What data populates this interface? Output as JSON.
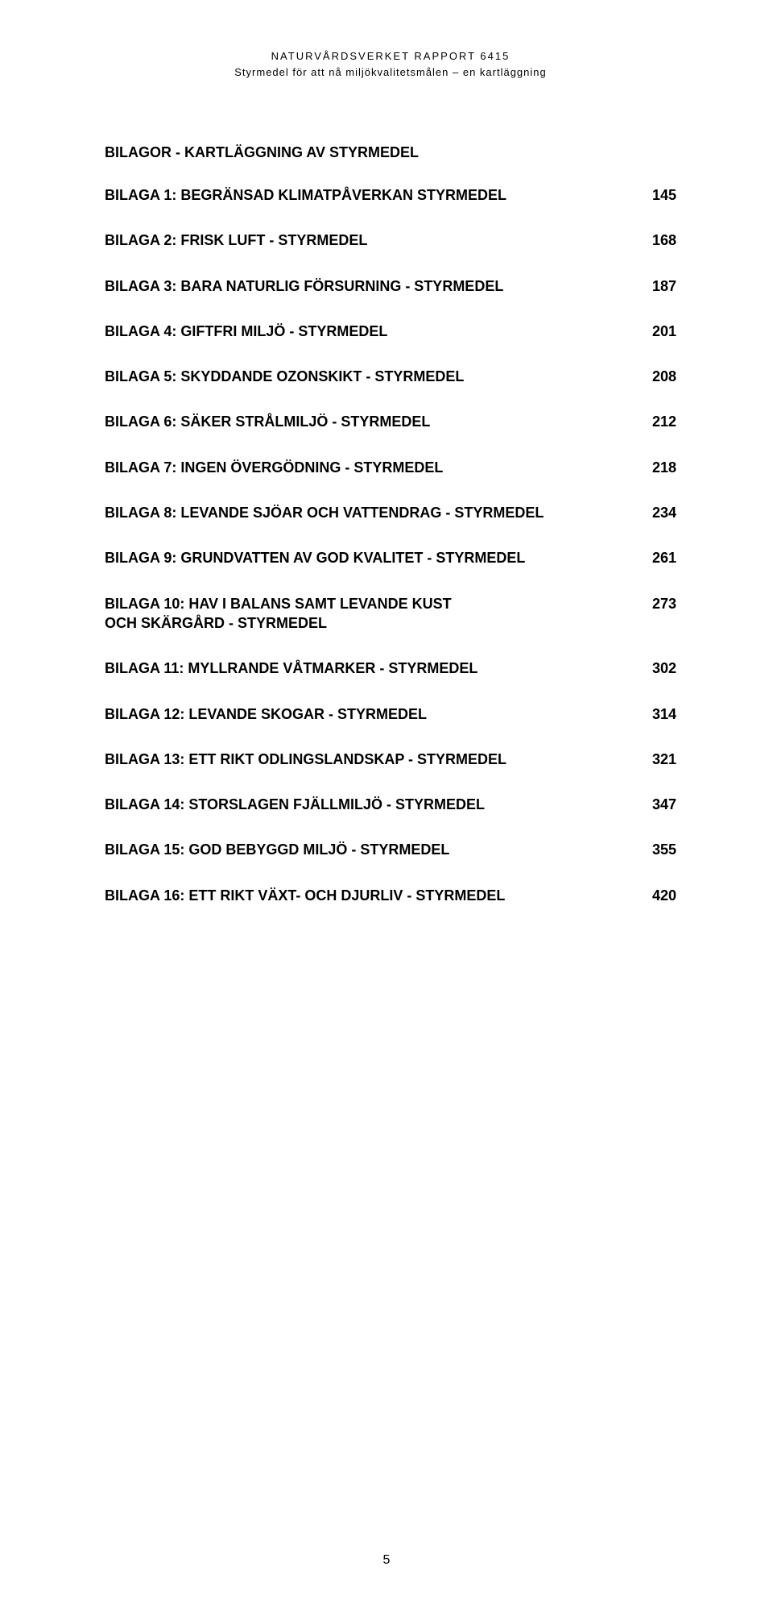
{
  "header": {
    "line1": "NATURVÅRDSVERKET RAPPORT 6415",
    "line2": "Styrmedel för att nå miljökvalitetsmålen – en kartläggning"
  },
  "section_title": "BILAGOR - KARTLÄGGNING AV STYRMEDEL",
  "toc": [
    {
      "label": "BILAGA 1: BEGRÄNSAD KLIMATPÅVERKAN STYRMEDEL",
      "page": "145"
    },
    {
      "label": "BILAGA 2: FRISK LUFT - STYRMEDEL",
      "page": "168"
    },
    {
      "label": "BILAGA 3: BARA NATURLIG FÖRSURNING - STYRMEDEL",
      "page": "187"
    },
    {
      "label": "BILAGA 4: GIFTFRI MILJÖ - STYRMEDEL",
      "page": "201"
    },
    {
      "label": "BILAGA 5: SKYDDANDE OZONSKIKT - STYRMEDEL",
      "page": "208"
    },
    {
      "label": "BILAGA 6: SÄKER STRÅLMILJÖ - STYRMEDEL",
      "page": "212"
    },
    {
      "label": "BILAGA 7: INGEN ÖVERGÖDNING - STYRMEDEL",
      "page": "218"
    },
    {
      "label": "BILAGA 8: LEVANDE SJÖAR OCH VATTENDRAG - STYRMEDEL",
      "page": "234"
    },
    {
      "label": "BILAGA 9: GRUNDVATTEN AV GOD KVALITET - STYRMEDEL",
      "page": "261"
    },
    {
      "label": "BILAGA 10: HAV I BALANS SAMT LEVANDE KUST\nOCH SKÄRGÅRD - STYRMEDEL",
      "page": "273"
    },
    {
      "label": "BILAGA 11: MYLLRANDE VÅTMARKER - STYRMEDEL",
      "page": "302"
    },
    {
      "label": "BILAGA 12: LEVANDE SKOGAR - STYRMEDEL",
      "page": "314"
    },
    {
      "label": "BILAGA 13: ETT RIKT ODLINGSLANDSKAP - STYRMEDEL",
      "page": "321"
    },
    {
      "label": "BILAGA 14: STORSLAGEN FJÄLLMILJÖ - STYRMEDEL",
      "page": "347"
    },
    {
      "label": "BILAGA 15: GOD BEBYGGD MILJÖ - STYRMEDEL",
      "page": "355"
    },
    {
      "label": "BILAGA 16: ETT RIKT VÄXT- OCH DJURLIV - STYRMEDEL",
      "page": "420"
    }
  ],
  "page_number": "5"
}
